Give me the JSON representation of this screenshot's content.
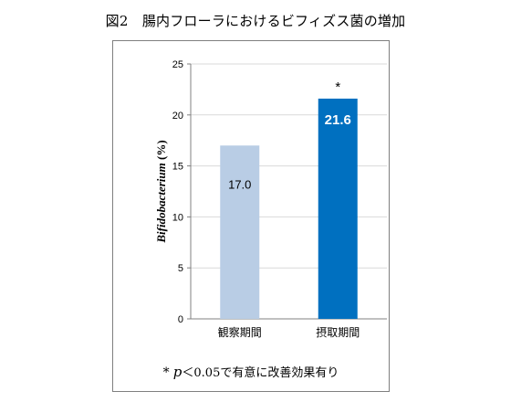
{
  "figure_title": "図2　腸内フローラにおけるビフィズス菌の増加",
  "footnote": {
    "star": "*",
    "p": "p",
    "rest": "＜0.05で有意に改善効果有り"
  },
  "colors": {
    "bar_light": "#b9cde5",
    "bar_dark": "#0070c0",
    "axis": "#808080",
    "grid": "#d9d9d9",
    "label_dark": "#000000",
    "label_light": "#ffffff"
  },
  "chart_data": {
    "type": "bar",
    "categories": [
      "観察期間",
      "摂取期間"
    ],
    "values": [
      17.0,
      21.6
    ],
    "data_labels": [
      "17.0",
      "21.6"
    ],
    "bar_colors": [
      "#b9cde5",
      "#0070c0"
    ],
    "significance": [
      "",
      "*"
    ],
    "ylabel": "Bifidobacterium (%)",
    "ylabel_italic_part": "Bifidobacterium",
    "ylabel_unit": "(%)",
    "ylim": [
      0,
      25
    ],
    "yticks": [
      0,
      5,
      10,
      15,
      20,
      25
    ],
    "grid": true,
    "legend": "none"
  }
}
